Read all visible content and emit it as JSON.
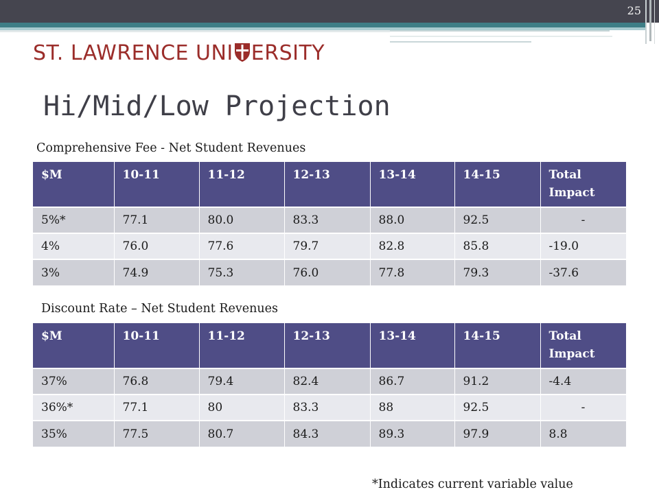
{
  "slide_number": "25",
  "logo": {
    "text_left": "ST. LAWRENCE UNI",
    "text_right": "ERSITY",
    "shield_color": "#9b2d2a"
  },
  "title": "Hi/Mid/Low Projection",
  "table1": {
    "caption": "Comprehensive Fee  - Net Student Revenues",
    "headers": [
      "$M",
      "10-11",
      "11-12",
      "12-13",
      "13-14",
      "14-15",
      "Total Impact"
    ],
    "rows": [
      [
        "5%*",
        "77.1",
        "80.0",
        "83.3",
        "88.0",
        "92.5",
        "-"
      ],
      [
        "4%",
        "76.0",
        "77.6",
        "79.7",
        "82.8",
        "85.8",
        "-19.0"
      ],
      [
        "3%",
        "74.9",
        "75.3",
        "76.0",
        "77.8",
        "79.3",
        "-37.6"
      ]
    ]
  },
  "table2": {
    "caption": "Discount Rate – Net Student Revenues",
    "headers": [
      "$M",
      "10-11",
      "11-12",
      "12-13",
      "13-14",
      "14-15",
      "Total Impact"
    ],
    "rows": [
      [
        "37%",
        "76.8",
        "79.4",
        "82.4",
        "86.7",
        "91.2",
        "-4.4"
      ],
      [
        "36%*",
        "77.1",
        "80",
        "83.3",
        "88",
        "92.5",
        "-"
      ],
      [
        "35%",
        "77.5",
        "80.7",
        "84.3",
        "89.3",
        "97.9",
        "8.8"
      ]
    ]
  },
  "footnote": "*Indicates current variable value",
  "colors": {
    "header_bg": "#4f4d86",
    "row_odd": "#cfd0d7",
    "row_even": "#e8e9ee",
    "brand_red": "#9b2d2a",
    "top_bar": "#45454f",
    "teal_accent": "#3e7e86"
  }
}
